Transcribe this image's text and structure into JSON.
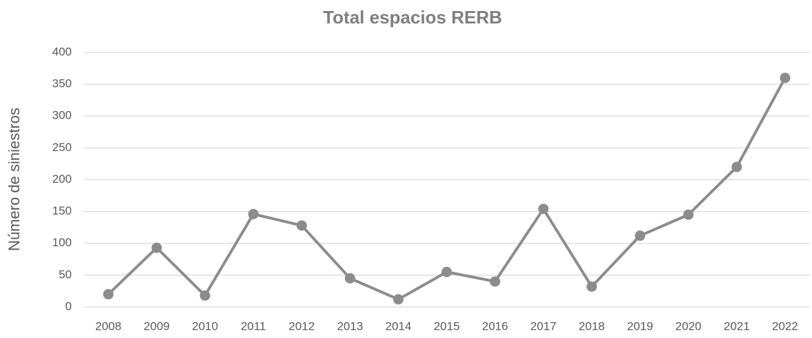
{
  "chart_data": {
    "type": "line",
    "title": "Total espacios RERB",
    "y_label": "Número de siniestros",
    "categories": [
      "2008",
      "2009",
      "2010",
      "2011",
      "2012",
      "2013",
      "2014",
      "2015",
      "2016",
      "2017",
      "2018",
      "2019",
      "2020",
      "2021",
      "2022"
    ],
    "series": [
      {
        "name": "Total espacios RERB",
        "color": "#8c8c8c",
        "values": [
          20,
          93,
          18,
          146,
          128,
          45,
          12,
          55,
          40,
          154,
          32,
          112,
          145,
          220,
          360
        ]
      }
    ],
    "ylim": [
      0,
      400
    ],
    "yticks": [
      0,
      50,
      100,
      150,
      200,
      250,
      300,
      350,
      400
    ],
    "grid": true,
    "legend": false
  }
}
